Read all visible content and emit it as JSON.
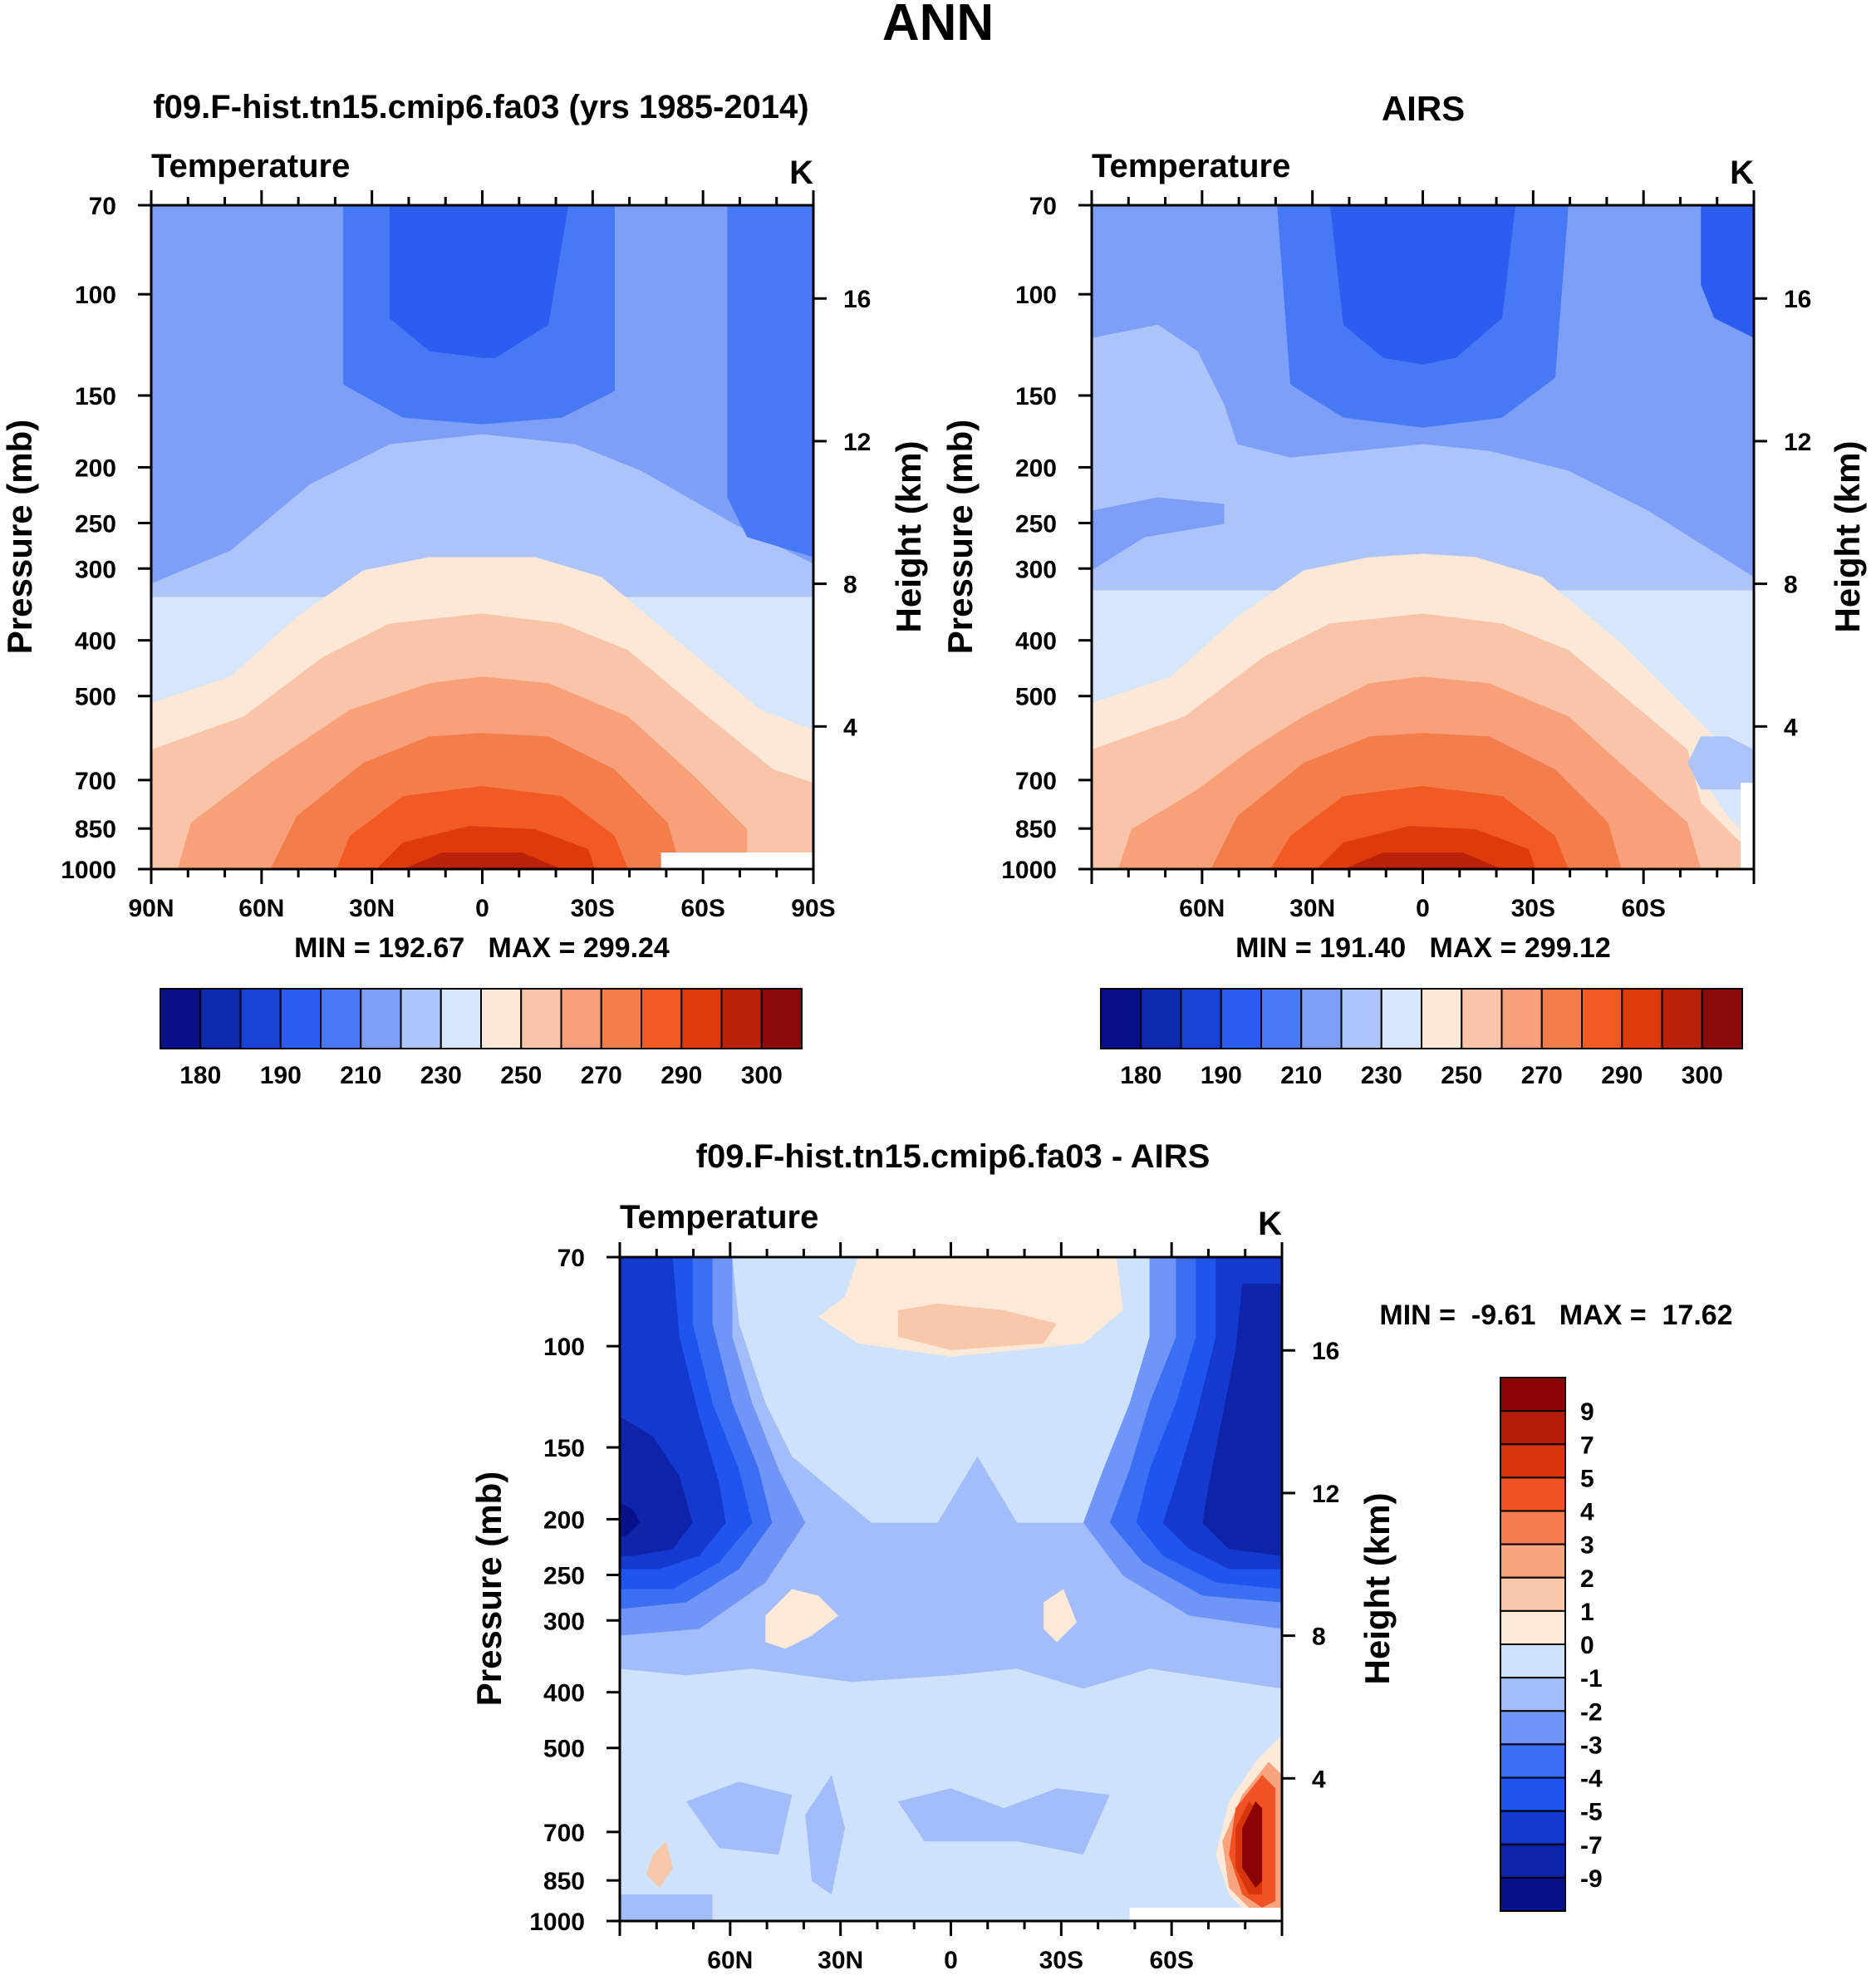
{
  "figure_title": "ANN",
  "chart_data": [
    {
      "type": "contour",
      "id": "model",
      "title": "f09.F-hist.tn15.cmip6.fa03 (yrs 1985-2014)",
      "variable": "Temperature",
      "units": "K",
      "ylabel": "Pressure (mb)",
      "ylabel_right": "Height (km)",
      "x_ticks": [
        "90N",
        "60N",
        "30N",
        "0",
        "30S",
        "60S",
        "90S"
      ],
      "x_range": [
        90,
        -90
      ],
      "y_ticks": [
        70,
        100,
        150,
        200,
        250,
        300,
        400,
        500,
        700,
        850,
        1000
      ],
      "y_range": [
        70,
        1000
      ],
      "height_ticks": [
        16,
        12,
        8,
        4
      ],
      "stats": "MIN = 192.67   MAX = 299.24",
      "min": 192.67,
      "max": 299.24,
      "colorbar_labels": [
        "180",
        "190",
        "210",
        "230",
        "250",
        "270",
        "290",
        "300"
      ],
      "colorbar_orientation": "horizontal",
      "contour_levels": [
        185,
        190,
        200,
        210,
        220,
        230,
        240,
        250,
        260,
        270,
        280,
        290,
        295,
        300
      ]
    },
    {
      "type": "contour",
      "id": "obs",
      "title": "AIRS",
      "variable": "Temperature",
      "units": "K",
      "ylabel": "Pressure (mb)",
      "ylabel_right": "Height (km)",
      "x_ticks": [
        "60N",
        "30N",
        "0",
        "30S",
        "60S"
      ],
      "x_range": [
        90,
        -90
      ],
      "y_ticks": [
        70,
        100,
        150,
        200,
        250,
        300,
        400,
        500,
        700,
        850,
        1000
      ],
      "y_range": [
        70,
        1000
      ],
      "height_ticks": [
        16,
        12,
        8,
        4
      ],
      "stats": "MIN = 191.40   MAX = 299.12",
      "min": 191.4,
      "max": 299.12,
      "colorbar_labels": [
        "180",
        "190",
        "210",
        "230",
        "250",
        "270",
        "290",
        "300"
      ],
      "colorbar_orientation": "horizontal",
      "contour_levels": [
        185,
        190,
        200,
        210,
        220,
        230,
        240,
        250,
        260,
        270,
        280,
        290,
        295,
        300
      ]
    },
    {
      "type": "contour",
      "id": "diff",
      "title": "f09.F-hist.tn15.cmip6.fa03 - AIRS",
      "variable": "Temperature",
      "units": "K",
      "ylabel": "Pressure (mb)",
      "ylabel_right": "Height (km)",
      "x_ticks": [
        "60N",
        "30N",
        "0",
        "30S",
        "60S"
      ],
      "x_range": [
        90,
        -90
      ],
      "y_ticks": [
        70,
        100,
        150,
        200,
        250,
        300,
        400,
        500,
        700,
        850,
        1000
      ],
      "y_range": [
        70,
        1000
      ],
      "height_ticks": [
        16,
        12,
        8,
        4
      ],
      "stats": "MIN =  -9.61   MAX =  17.62",
      "min": -9.61,
      "max": 17.62,
      "colorbar_labels": [
        "9",
        "7",
        "5",
        "4",
        "3",
        "2",
        "1",
        "0",
        "-1",
        "-2",
        "-3",
        "-4",
        "-5",
        "-7",
        "-9"
      ],
      "colorbar_orientation": "vertical",
      "contour_levels": [
        -9,
        -7,
        -5,
        -4,
        -3,
        -2,
        -1,
        0,
        1,
        2,
        3,
        4,
        5,
        7,
        9
      ]
    }
  ],
  "colors": {
    "abs_palette": [
      "#08118a",
      "#0e2bb0",
      "#1843d5",
      "#2c5df0",
      "#4779f5",
      "#7d9ff7",
      "#adc4fa",
      "#d6e6fb",
      "#fde8d8",
      "#f9c4a7",
      "#f7a07a",
      "#f47d4c",
      "#f15a22",
      "#de3a0c",
      "#b92208",
      "#8a0a0a"
    ],
    "diff_palette": [
      "#07128a",
      "#0d24a9",
      "#1539cf",
      "#1f55ee",
      "#3b6ef3",
      "#6f95f6",
      "#a3bdfa",
      "#cfe2fc",
      "#fde9d8",
      "#f9c8ab",
      "#f8a47f",
      "#f47c4f",
      "#f05224",
      "#d9350c",
      "#b41c07",
      "#8a0404"
    ]
  }
}
